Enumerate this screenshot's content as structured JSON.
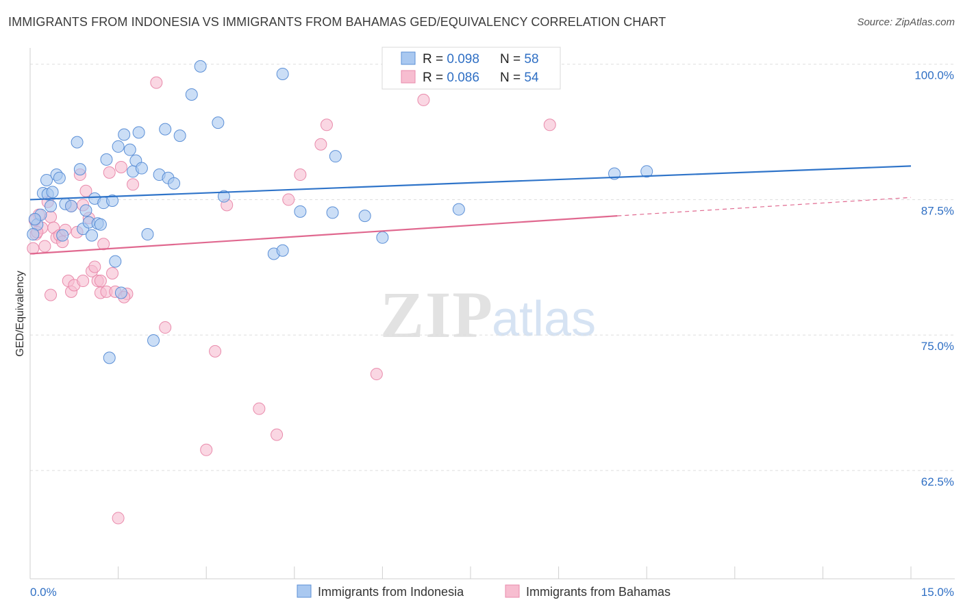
{
  "header": {
    "title": "IMMIGRANTS FROM INDONESIA VS IMMIGRANTS FROM BAHAMAS GED/EQUIVALENCY CORRELATION CHART",
    "source": "Source: ZipAtlas.com"
  },
  "watermark": {
    "zip": "ZIP",
    "atlas": "atlas"
  },
  "chart_data": {
    "type": "scatter",
    "title": "IMMIGRANTS FROM INDONESIA VS IMMIGRANTS FROM BAHAMAS GED/EQUIVALENCY CORRELATION CHART",
    "xlabel": "",
    "ylabel": "GED/Equivalency",
    "xlim": [
      0,
      15
    ],
    "ylim": [
      52.5,
      101.5
    ],
    "x_tick_labels": [
      "0.0%",
      "15.0%"
    ],
    "y_ticks": [
      62.5,
      75.0,
      87.5,
      100.0
    ],
    "y_tick_labels": [
      "62.5%",
      "75.0%",
      "87.5%",
      "100.0%"
    ],
    "grid": true,
    "legend_position": "top-center",
    "colors": {
      "indonesia_fill": "#a9c8f0",
      "indonesia_stroke": "#5b8fd6",
      "indonesia_line": "#2f74c9",
      "bahamas_fill": "#f7bdd0",
      "bahamas_stroke": "#e98aab",
      "bahamas_line": "#e0688f",
      "value_text": "#2f6fc4",
      "grid": "#dddddd"
    },
    "stats": [
      {
        "r_label": "R = ",
        "r_value": "0.098",
        "n_label": "N = ",
        "n_value": "58"
      },
      {
        "r_label": "R = ",
        "r_value": "0.086",
        "n_label": "N = ",
        "n_value": "54"
      }
    ],
    "series": [
      {
        "name": "Immigrants from Indonesia",
        "trend": {
          "x0": 0.0,
          "y0": 87.5,
          "x1": 15.0,
          "y1": 90.6
        },
        "points": [
          [
            0.12,
            85.2
          ],
          [
            0.18,
            86.1
          ],
          [
            0.22,
            88.1
          ],
          [
            0.28,
            89.3
          ],
          [
            0.3,
            88.0
          ],
          [
            0.35,
            86.9
          ],
          [
            0.38,
            88.2
          ],
          [
            0.45,
            89.8
          ],
          [
            0.5,
            89.5
          ],
          [
            0.55,
            84.2
          ],
          [
            0.6,
            87.1
          ],
          [
            0.7,
            86.9
          ],
          [
            0.8,
            92.8
          ],
          [
            0.85,
            90.3
          ],
          [
            0.9,
            84.8
          ],
          [
            0.95,
            86.5
          ],
          [
            1.0,
            85.4
          ],
          [
            1.05,
            84.2
          ],
          [
            1.1,
            87.6
          ],
          [
            1.15,
            85.3
          ],
          [
            1.2,
            85.2
          ],
          [
            1.25,
            87.2
          ],
          [
            1.3,
            91.2
          ],
          [
            1.35,
            72.9
          ],
          [
            1.4,
            87.4
          ],
          [
            1.45,
            81.8
          ],
          [
            1.5,
            92.4
          ],
          [
            1.55,
            78.9
          ],
          [
            1.6,
            93.5
          ],
          [
            1.7,
            92.1
          ],
          [
            1.75,
            90.1
          ],
          [
            1.8,
            91.1
          ],
          [
            1.85,
            93.7
          ],
          [
            1.9,
            90.4
          ],
          [
            2.0,
            84.3
          ],
          [
            2.1,
            74.5
          ],
          [
            2.2,
            89.8
          ],
          [
            2.3,
            94.0
          ],
          [
            2.35,
            89.5
          ],
          [
            2.45,
            89.0
          ],
          [
            2.55,
            93.4
          ],
          [
            2.75,
            97.2
          ],
          [
            2.9,
            99.8
          ],
          [
            3.2,
            94.6
          ],
          [
            3.3,
            87.8
          ],
          [
            4.15,
            82.5
          ],
          [
            4.3,
            82.8
          ],
          [
            4.3,
            99.1
          ],
          [
            4.6,
            86.4
          ],
          [
            5.15,
            86.3
          ],
          [
            5.2,
            91.5
          ],
          [
            5.7,
            86.0
          ],
          [
            6.0,
            84.0
          ],
          [
            7.3,
            86.6
          ],
          [
            9.95,
            89.9
          ],
          [
            10.5,
            90.1
          ],
          [
            0.05,
            84.3
          ],
          [
            0.08,
            85.7
          ]
        ]
      },
      {
        "name": "Immigrants from Bahamas",
        "trend": {
          "x0": 0.0,
          "y0": 82.5,
          "x1": 10.0,
          "y1": 86.0,
          "x_dash_end": 15.0,
          "y_dash_end": 87.7
        },
        "points": [
          [
            0.05,
            83.0
          ],
          [
            0.1,
            84.3
          ],
          [
            0.15,
            86.1
          ],
          [
            0.2,
            84.9
          ],
          [
            0.25,
            83.2
          ],
          [
            0.3,
            87.3
          ],
          [
            0.35,
            85.9
          ],
          [
            0.4,
            84.9
          ],
          [
            0.45,
            84.0
          ],
          [
            0.5,
            84.2
          ],
          [
            0.55,
            83.6
          ],
          [
            0.6,
            84.7
          ],
          [
            0.65,
            80.0
          ],
          [
            0.7,
            79.0
          ],
          [
            0.75,
            79.6
          ],
          [
            0.8,
            84.5
          ],
          [
            0.85,
            89.8
          ],
          [
            0.9,
            87.0
          ],
          [
            0.95,
            88.3
          ],
          [
            1.0,
            85.8
          ],
          [
            1.05,
            80.9
          ],
          [
            1.1,
            81.3
          ],
          [
            1.15,
            80.0
          ],
          [
            1.2,
            78.9
          ],
          [
            1.25,
            83.4
          ],
          [
            1.3,
            79.0
          ],
          [
            1.35,
            90.0
          ],
          [
            1.4,
            80.7
          ],
          [
            1.45,
            79.0
          ],
          [
            1.5,
            58.1
          ],
          [
            1.55,
            90.5
          ],
          [
            1.65,
            78.8
          ],
          [
            1.75,
            88.9
          ],
          [
            2.15,
            98.3
          ],
          [
            2.3,
            75.7
          ],
          [
            3.0,
            64.4
          ],
          [
            3.15,
            73.5
          ],
          [
            3.35,
            87.0
          ],
          [
            3.9,
            68.2
          ],
          [
            4.2,
            65.8
          ],
          [
            4.4,
            87.5
          ],
          [
            4.6,
            89.8
          ],
          [
            4.95,
            92.6
          ],
          [
            5.05,
            94.4
          ],
          [
            5.9,
            71.4
          ],
          [
            6.7,
            96.7
          ],
          [
            8.85,
            94.4
          ],
          [
            0.08,
            85.6
          ],
          [
            0.12,
            84.5
          ],
          [
            0.35,
            78.7
          ],
          [
            0.9,
            80.0
          ],
          [
            1.6,
            78.5
          ],
          [
            0.7,
            86.9
          ],
          [
            1.2,
            80.0
          ]
        ]
      }
    ]
  }
}
